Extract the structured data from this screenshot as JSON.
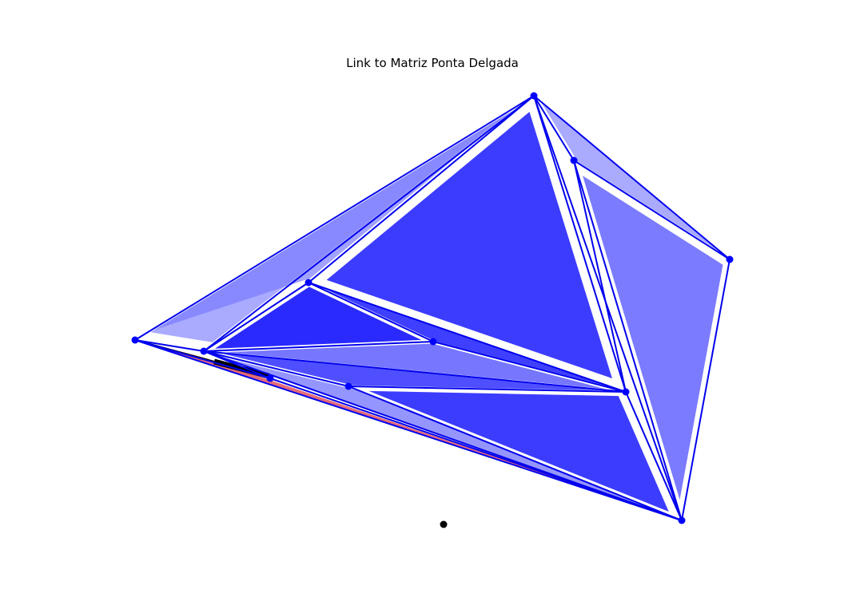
{
  "figure": {
    "title": "Link to Matriz Ponta Delgada"
  },
  "colors": {
    "edge": "#0000ee",
    "node": "#0000ff",
    "fill_light": "#aaaaff",
    "fill_mid": "#7b7bff",
    "fill_strong": "#3c3cff",
    "fill_deep": "#2a2aff",
    "highlight": "#e05a6a",
    "path": "#000000"
  },
  "nodes": [
    {
      "id": "A"
    },
    {
      "id": "B"
    },
    {
      "id": "C"
    },
    {
      "id": "D"
    },
    {
      "id": "E"
    },
    {
      "id": "F"
    },
    {
      "id": "G"
    },
    {
      "id": "H"
    },
    {
      "id": "I"
    },
    {
      "id": "J"
    },
    {
      "id": "K"
    }
  ],
  "edges": [
    [
      "A",
      "B"
    ],
    [
      "A",
      "C"
    ],
    [
      "A",
      "E"
    ],
    [
      "B",
      "D"
    ],
    [
      "B",
      "H"
    ],
    [
      "B",
      "E"
    ],
    [
      "C",
      "D"
    ],
    [
      "C",
      "F"
    ],
    [
      "C",
      "G"
    ],
    [
      "C",
      "H"
    ],
    [
      "C",
      "I"
    ],
    [
      "C",
      "J"
    ],
    [
      "D",
      "H"
    ],
    [
      "E",
      "F"
    ],
    [
      "E",
      "I"
    ],
    [
      "E",
      "J"
    ],
    [
      "E",
      "G"
    ],
    [
      "F",
      "H"
    ],
    [
      "F",
      "I"
    ],
    [
      "G",
      "H"
    ],
    [
      "I",
      "H"
    ],
    [
      "J",
      "H"
    ],
    [
      "B",
      "C"
    ]
  ],
  "highlight_link": [
    "E",
    "J"
  ],
  "marker": {
    "id": "target"
  }
}
